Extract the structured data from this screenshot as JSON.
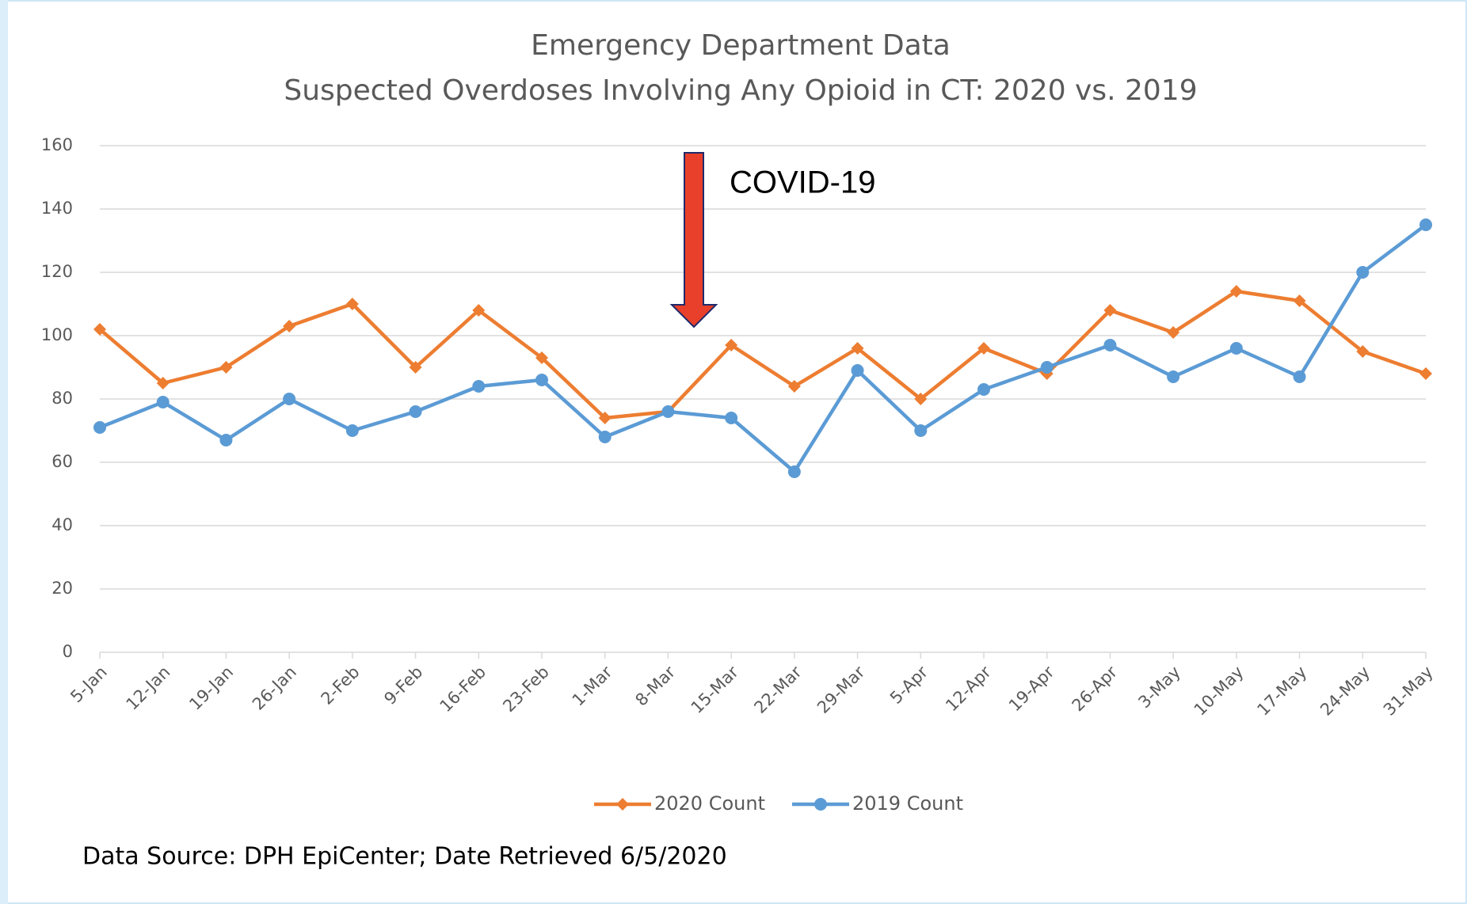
{
  "chart_data": {
    "type": "line",
    "title": "Emergency Department Data",
    "subtitle": "Suspected Overdoses Involving Any Opioid in CT: 2020 vs. 2019",
    "annotation": "COVID-19",
    "source": "Data Source: DPH EpiCenter; Date Retrieved 6/5/2020",
    "categories": [
      "5-Jan",
      "12-Jan",
      "19-Jan",
      "26-Jan",
      "2-Feb",
      "9-Feb",
      "16-Feb",
      "23-Feb",
      "1-Mar",
      "8-Mar",
      "15-Mar",
      "22-Mar",
      "29-Mar",
      "5-Apr",
      "12-Apr",
      "19-Apr",
      "26-Apr",
      "3-May",
      "10-May",
      "17-May",
      "24-May",
      "31-May"
    ],
    "series": [
      {
        "name": "2020 Count",
        "color": "#ed7d31",
        "marker": "diamond",
        "values": [
          102,
          85,
          90,
          103,
          110,
          90,
          108,
          93,
          74,
          76,
          97,
          84,
          96,
          80,
          96,
          88,
          108,
          101,
          114,
          111,
          95,
          88
        ]
      },
      {
        "name": "2019 Count",
        "color": "#5b9bd5",
        "marker": "circle",
        "values": [
          71,
          79,
          67,
          80,
          70,
          76,
          84,
          86,
          68,
          76,
          74,
          57,
          89,
          70,
          83,
          90,
          97,
          87,
          96,
          87,
          120,
          135
        ]
      }
    ],
    "ylim": [
      0,
      160
    ],
    "yticks": [
      0,
      20,
      40,
      60,
      80,
      100,
      120,
      140,
      160
    ],
    "grid": true,
    "legend": "bottom"
  }
}
